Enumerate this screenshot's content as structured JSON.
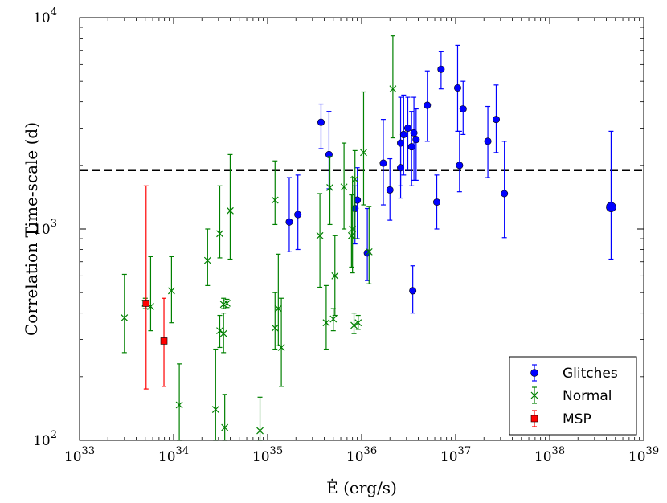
{
  "chart_data": {
    "type": "scatter",
    "xscale": "log",
    "yscale": "log",
    "xlim": [
      1e+33,
      1e+39
    ],
    "ylim": [
      100,
      10000
    ],
    "xlabel": "Ė (erg/s)",
    "ylabel": "Correlation Time-scale (d)",
    "x_tick_labels": [
      {
        "value": 1e+33,
        "base": "10",
        "exp": "33"
      },
      {
        "value": 1e+34,
        "base": "10",
        "exp": "34"
      },
      {
        "value": 1e+35,
        "base": "10",
        "exp": "35"
      },
      {
        "value": 1e+36,
        "base": "10",
        "exp": "36"
      },
      {
        "value": 1e+37,
        "base": "10",
        "exp": "37"
      },
      {
        "value": 1e+38,
        "base": "10",
        "exp": "38"
      },
      {
        "value": 1e+39,
        "base": "10",
        "exp": "39"
      }
    ],
    "y_tick_labels": [
      {
        "value": 100,
        "base": "10",
        "exp": "2"
      },
      {
        "value": 1000,
        "base": "10",
        "exp": "3"
      },
      {
        "value": 10000,
        "base": "10",
        "exp": "4"
      }
    ],
    "reference_line": {
      "y": 1900,
      "style": "dashed",
      "color": "#000000"
    },
    "legend": {
      "position": "bottom-right"
    },
    "series": [
      {
        "name": "Glitches",
        "marker": "circle",
        "color": "#0000ff",
        "points": [
          {
            "x": 1.7e+35,
            "y": 1080,
            "lo": 780,
            "hi": 1750
          },
          {
            "x": 2.1e+35,
            "y": 1170,
            "lo": 800,
            "hi": 1800
          },
          {
            "x": 3.7e+35,
            "y": 3200,
            "lo": 2400,
            "hi": 3900
          },
          {
            "x": 4.5e+35,
            "y": 2250,
            "lo": 1550,
            "hi": 3600
          },
          {
            "x": 8.5e+35,
            "y": 1250,
            "lo": 850,
            "hi": 1600
          },
          {
            "x": 9e+35,
            "y": 1370,
            "lo": 900,
            "hi": 1950
          },
          {
            "x": 1.15e+36,
            "y": 770,
            "lo": 570,
            "hi": 1250
          },
          {
            "x": 1.7e+36,
            "y": 2050,
            "lo": 1300,
            "hi": 3300
          },
          {
            "x": 2e+36,
            "y": 1530,
            "lo": 1100,
            "hi": 2150
          },
          {
            "x": 2.6e+36,
            "y": 2550,
            "lo": 1600,
            "hi": 4200
          },
          {
            "x": 2.6e+36,
            "y": 1950,
            "lo": 1400,
            "hi": 2600
          },
          {
            "x": 2.8e+36,
            "y": 2800,
            "lo": 1800,
            "hi": 4300
          },
          {
            "x": 3.1e+36,
            "y": 3000,
            "lo": 1900,
            "hi": 4200
          },
          {
            "x": 3.4e+36,
            "y": 2450,
            "lo": 1600,
            "hi": 3600
          },
          {
            "x": 3.5e+36,
            "y": 510,
            "lo": 400,
            "hi": 670
          },
          {
            "x": 3.6e+36,
            "y": 2850,
            "lo": 1700,
            "hi": 4200
          },
          {
            "x": 3.8e+36,
            "y": 2650,
            "lo": 1700,
            "hi": 3700
          },
          {
            "x": 5e+36,
            "y": 3850,
            "lo": 2600,
            "hi": 5600
          },
          {
            "x": 6.3e+36,
            "y": 1340,
            "lo": 1000,
            "hi": 1800
          },
          {
            "x": 7e+36,
            "y": 5700,
            "lo": 4600,
            "hi": 6900
          },
          {
            "x": 1.05e+37,
            "y": 4650,
            "lo": 2900,
            "hi": 7400
          },
          {
            "x": 1.1e+37,
            "y": 2000,
            "lo": 1500,
            "hi": 2900
          },
          {
            "x": 1.2e+37,
            "y": 3700,
            "lo": 2800,
            "hi": 5000
          },
          {
            "x": 2.2e+37,
            "y": 2600,
            "lo": 1750,
            "hi": 3800
          },
          {
            "x": 2.7e+37,
            "y": 3300,
            "lo": 2300,
            "hi": 4800
          },
          {
            "x": 3.3e+37,
            "y": 1470,
            "lo": 910,
            "hi": 2600
          },
          {
            "x": 4.5e+38,
            "y": 1270,
            "lo": 720,
            "hi": 2900,
            "large": true
          }
        ]
      },
      {
        "name": "Normal",
        "marker": "x",
        "color": "#008000",
        "points": [
          {
            "x": 3e+33,
            "y": 380,
            "lo": 260,
            "hi": 610
          },
          {
            "x": 5e+33,
            "y": 445,
            "lo": 420,
            "hi": 470
          },
          {
            "x": 5.7e+33,
            "y": 430,
            "lo": 330,
            "hi": 740
          },
          {
            "x": 9.5e+33,
            "y": 510,
            "lo": 360,
            "hi": 740
          },
          {
            "x": 1.15e+34,
            "y": 147,
            "lo": 100,
            "hi": 230
          },
          {
            "x": 2.3e+34,
            "y": 710,
            "lo": 540,
            "hi": 1000
          },
          {
            "x": 2.8e+34,
            "y": 140,
            "lo": 100,
            "hi": 270
          },
          {
            "x": 3.1e+34,
            "y": 330,
            "lo": 275,
            "hi": 390
          },
          {
            "x": 3.1e+34,
            "y": 950,
            "lo": 730,
            "hi": 1600
          },
          {
            "x": 3.4e+34,
            "y": 320,
            "lo": 260,
            "hi": 400
          },
          {
            "x": 3.4e+34,
            "y": 440,
            "lo": 420,
            "hi": 470
          },
          {
            "x": 3.5e+34,
            "y": 115,
            "lo": 100,
            "hi": 165
          },
          {
            "x": 3.7e+34,
            "y": 445,
            "lo": 425,
            "hi": 465
          },
          {
            "x": 4e+34,
            "y": 1220,
            "lo": 720,
            "hi": 2250
          },
          {
            "x": 8.3e+34,
            "y": 111,
            "lo": 100,
            "hi": 160
          },
          {
            "x": 1.2e+35,
            "y": 1370,
            "lo": 1050,
            "hi": 2100
          },
          {
            "x": 1.2e+35,
            "y": 340,
            "lo": 270,
            "hi": 500
          },
          {
            "x": 1.3e+35,
            "y": 420,
            "lo": 280,
            "hi": 760
          },
          {
            "x": 1.4e+35,
            "y": 275,
            "lo": 180,
            "hi": 470
          },
          {
            "x": 3.6e+35,
            "y": 930,
            "lo": 530,
            "hi": 1470
          },
          {
            "x": 4.2e+35,
            "y": 360,
            "lo": 270,
            "hi": 540
          },
          {
            "x": 4.6e+35,
            "y": 1570,
            "lo": 1050,
            "hi": 2200
          },
          {
            "x": 5e+35,
            "y": 375,
            "lo": 330,
            "hi": 420
          },
          {
            "x": 5.2e+35,
            "y": 600,
            "lo": 390,
            "hi": 930
          },
          {
            "x": 6.5e+35,
            "y": 1580,
            "lo": 1000,
            "hi": 2550
          },
          {
            "x": 7.8e+35,
            "y": 930,
            "lo": 660,
            "hi": 1450
          },
          {
            "x": 8e+35,
            "y": 1000,
            "lo": 620,
            "hi": 1750
          },
          {
            "x": 8.3e+35,
            "y": 350,
            "lo": 320,
            "hi": 400
          },
          {
            "x": 8.5e+35,
            "y": 1720,
            "lo": 900,
            "hi": 2350
          },
          {
            "x": 9.2e+35,
            "y": 360,
            "lo": 335,
            "hi": 390
          },
          {
            "x": 1.05e+36,
            "y": 2300,
            "lo": 1300,
            "hi": 4450
          },
          {
            "x": 1.2e+36,
            "y": 780,
            "lo": 550,
            "hi": 1280
          },
          {
            "x": 2.15e+36,
            "y": 4600,
            "lo": 2700,
            "hi": 8200
          }
        ]
      },
      {
        "name": "MSP",
        "marker": "square",
        "color": "#ff0000",
        "points": [
          {
            "x": 5.1e+33,
            "y": 445,
            "lo": 175,
            "hi": 1600
          },
          {
            "x": 7.9e+33,
            "y": 295,
            "lo": 180,
            "hi": 470
          }
        ]
      }
    ]
  }
}
